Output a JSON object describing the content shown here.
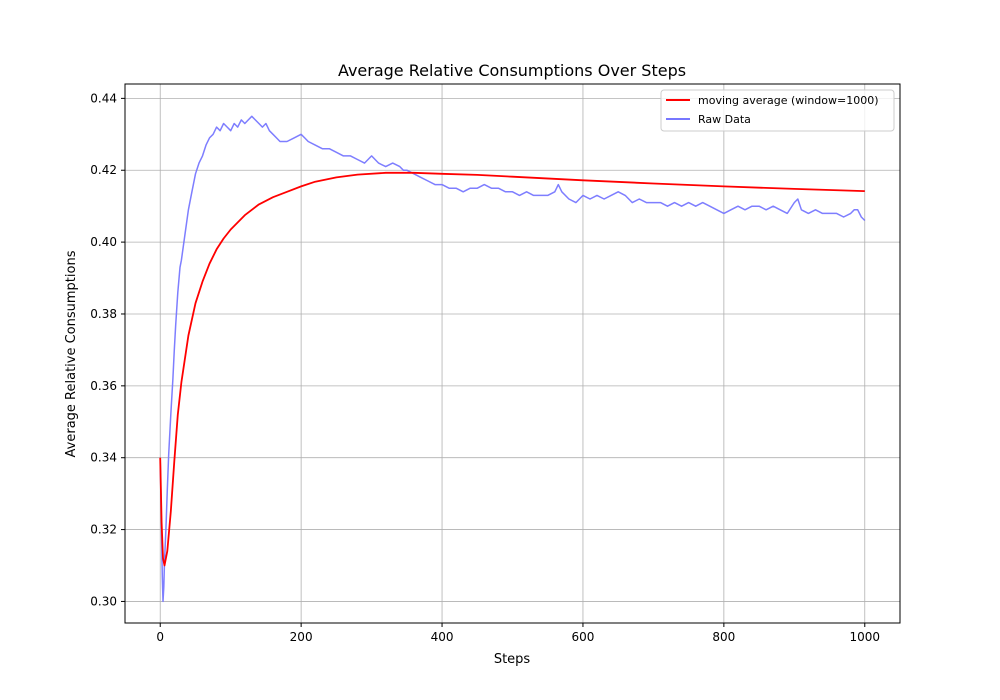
{
  "chart_data": {
    "type": "line",
    "title": "Average Relative Consumptions Over Steps",
    "xlabel": "Steps",
    "ylabel": "Average Relative Consumptions",
    "xlim": [
      -50,
      1050
    ],
    "ylim": [
      0.294,
      0.444
    ],
    "xticks": [
      0,
      200,
      400,
      600,
      800,
      1000
    ],
    "xtick_labels": [
      "0",
      "200",
      "400",
      "600",
      "800",
      "1000"
    ],
    "yticks": [
      0.3,
      0.32,
      0.34,
      0.36,
      0.38,
      0.4,
      0.42,
      0.44
    ],
    "ytick_labels": [
      "0.30",
      "0.32",
      "0.34",
      "0.36",
      "0.38",
      "0.40",
      "0.42",
      "0.44"
    ],
    "grid": true,
    "legend_position": "top-right",
    "series": [
      {
        "name": "moving average (window=1000)",
        "color": "#ff0000",
        "x": [
          0,
          2,
          4,
          6,
          10,
          15,
          20,
          25,
          30,
          40,
          50,
          60,
          70,
          80,
          90,
          100,
          120,
          140,
          160,
          180,
          200,
          220,
          250,
          280,
          320,
          360,
          400,
          450,
          500,
          600,
          700,
          800,
          900,
          1000
        ],
        "y": [
          0.34,
          0.322,
          0.312,
          0.31,
          0.314,
          0.325,
          0.339,
          0.352,
          0.361,
          0.374,
          0.383,
          0.389,
          0.394,
          0.398,
          0.401,
          0.4035,
          0.4075,
          0.4105,
          0.4125,
          0.414,
          0.4155,
          0.4168,
          0.418,
          0.4188,
          0.4193,
          0.4193,
          0.419,
          0.4187,
          0.4182,
          0.4172,
          0.4163,
          0.4155,
          0.4148,
          0.4142
        ]
      },
      {
        "name": "Raw Data",
        "color": "#7777ff",
        "x": [
          0,
          1,
          2,
          3,
          4,
          5,
          6,
          8,
          10,
          12,
          15,
          18,
          20,
          22,
          25,
          28,
          30,
          35,
          40,
          45,
          50,
          55,
          60,
          65,
          70,
          75,
          80,
          85,
          90,
          95,
          100,
          105,
          110,
          115,
          120,
          125,
          130,
          135,
          140,
          145,
          150,
          155,
          160,
          165,
          170,
          180,
          190,
          200,
          205,
          210,
          220,
          230,
          240,
          250,
          260,
          270,
          280,
          290,
          300,
          310,
          320,
          330,
          340,
          345,
          350,
          360,
          370,
          380,
          390,
          400,
          410,
          420,
          430,
          440,
          450,
          460,
          470,
          480,
          490,
          500,
          510,
          520,
          530,
          540,
          550,
          560,
          565,
          570,
          580,
          590,
          600,
          610,
          620,
          630,
          640,
          650,
          660,
          670,
          680,
          690,
          700,
          710,
          720,
          730,
          740,
          750,
          760,
          770,
          780,
          790,
          800,
          810,
          820,
          830,
          840,
          850,
          860,
          870,
          880,
          890,
          900,
          905,
          910,
          920,
          930,
          940,
          950,
          960,
          970,
          980,
          985,
          990,
          995,
          1000
        ],
        "y": [
          0.34,
          0.33,
          0.318,
          0.307,
          0.3,
          0.304,
          0.311,
          0.32,
          0.331,
          0.341,
          0.352,
          0.362,
          0.37,
          0.377,
          0.386,
          0.393,
          0.395,
          0.402,
          0.409,
          0.414,
          0.419,
          0.422,
          0.424,
          0.427,
          0.429,
          0.43,
          0.432,
          0.431,
          0.433,
          0.432,
          0.431,
          0.433,
          0.432,
          0.434,
          0.433,
          0.434,
          0.435,
          0.434,
          0.433,
          0.432,
          0.433,
          0.431,
          0.43,
          0.429,
          0.428,
          0.428,
          0.429,
          0.43,
          0.429,
          0.428,
          0.427,
          0.426,
          0.426,
          0.425,
          0.424,
          0.424,
          0.423,
          0.422,
          0.424,
          0.422,
          0.421,
          0.422,
          0.421,
          0.42,
          0.42,
          0.419,
          0.418,
          0.417,
          0.416,
          0.416,
          0.415,
          0.415,
          0.414,
          0.415,
          0.415,
          0.416,
          0.415,
          0.415,
          0.414,
          0.414,
          0.413,
          0.414,
          0.413,
          0.413,
          0.413,
          0.414,
          0.416,
          0.414,
          0.412,
          0.411,
          0.413,
          0.412,
          0.413,
          0.412,
          0.413,
          0.414,
          0.413,
          0.411,
          0.412,
          0.411,
          0.411,
          0.411,
          0.41,
          0.411,
          0.41,
          0.411,
          0.41,
          0.411,
          0.41,
          0.409,
          0.408,
          0.409,
          0.41,
          0.409,
          0.41,
          0.41,
          0.409,
          0.41,
          0.409,
          0.408,
          0.411,
          0.412,
          0.409,
          0.408,
          0.409,
          0.408,
          0.408,
          0.408,
          0.407,
          0.408,
          0.409,
          0.409,
          0.407,
          0.406
        ]
      }
    ]
  }
}
